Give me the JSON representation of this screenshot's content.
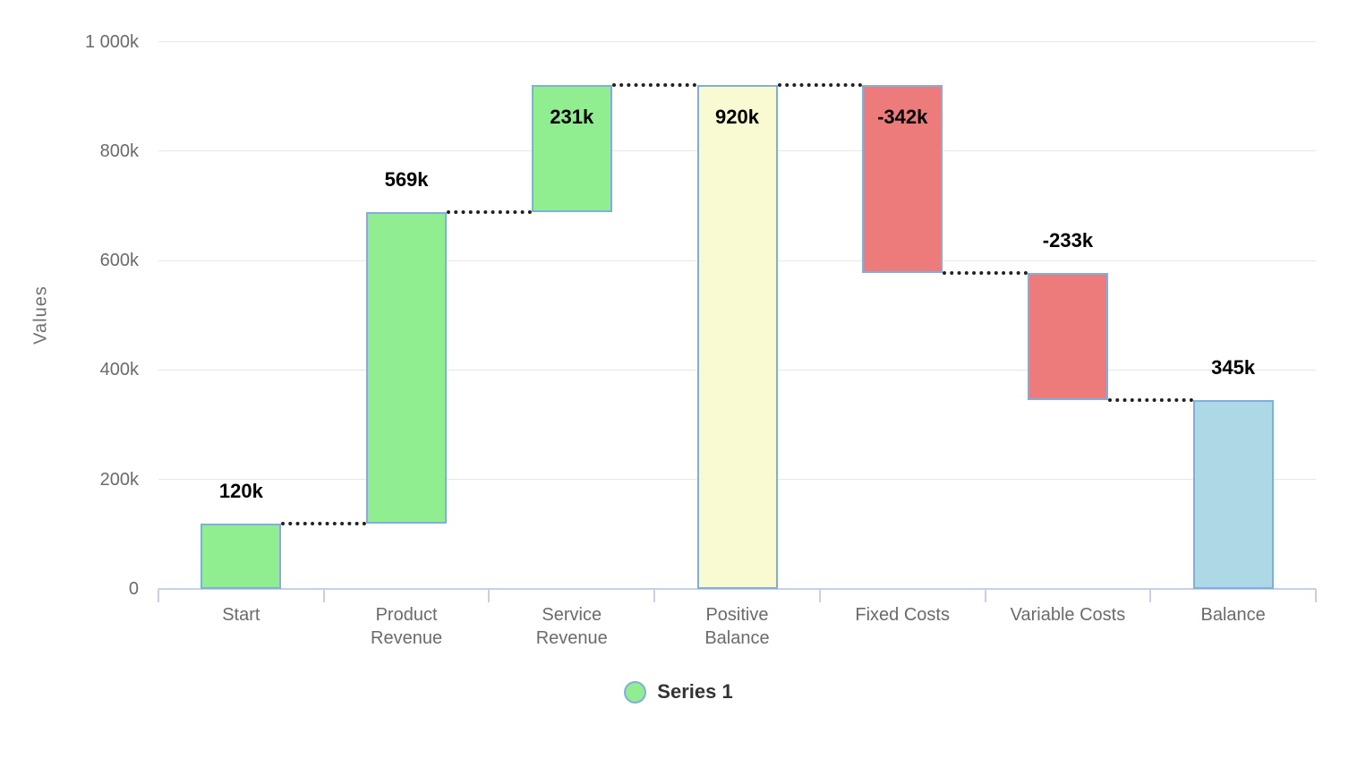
{
  "chart_data": {
    "type": "bar",
    "subtype": "waterfall",
    "title": "",
    "xlabel": "",
    "ylabel": "Values",
    "ylim": [
      0,
      1000
    ],
    "unit": "k",
    "grid": "horizontal",
    "yticks": [
      {
        "value": 0,
        "label": "0"
      },
      {
        "value": 200,
        "label": "200k"
      },
      {
        "value": 400,
        "label": "400k"
      },
      {
        "value": 600,
        "label": "600k"
      },
      {
        "value": 800,
        "label": "800k"
      },
      {
        "value": 1000,
        "label": "1 000k"
      }
    ],
    "categories": [
      "Start",
      "Product Revenue",
      "Service Revenue",
      "Positive Balance",
      "Fixed Costs",
      "Variable Costs",
      "Balance"
    ],
    "bars": [
      {
        "category": "Start",
        "category_lines": [
          "Start"
        ],
        "from": 0,
        "to": 120,
        "value": 120,
        "value_label": "120k",
        "role": "increase",
        "color": "#90ee90",
        "label_placement": "above"
      },
      {
        "category": "Product Revenue",
        "category_lines": [
          "Product",
          "Revenue"
        ],
        "from": 120,
        "to": 689,
        "value": 569,
        "value_label": "569k",
        "role": "increase",
        "color": "#90ee90",
        "label_placement": "above"
      },
      {
        "category": "Service Revenue",
        "category_lines": [
          "Service",
          "Revenue"
        ],
        "from": 689,
        "to": 920,
        "value": 231,
        "value_label": "231k",
        "role": "increase",
        "color": "#90ee90",
        "label_placement": "inside"
      },
      {
        "category": "Positive Balance",
        "category_lines": [
          "Positive",
          "Balance"
        ],
        "from": 0,
        "to": 920,
        "value": 920,
        "value_label": "920k",
        "role": "subtotal",
        "color": "#fafad2",
        "label_placement": "inside"
      },
      {
        "category": "Fixed Costs",
        "category_lines": [
          "Fixed Costs"
        ],
        "from": 920,
        "to": 578,
        "value": -342,
        "value_label": "-342k",
        "role": "decrease",
        "color": "#ed7b7b",
        "label_placement": "inside"
      },
      {
        "category": "Variable Costs",
        "category_lines": [
          "Variable Costs"
        ],
        "from": 578,
        "to": 345,
        "value": -233,
        "value_label": "-233k",
        "role": "decrease",
        "color": "#ed7b7b",
        "label_placement": "above"
      },
      {
        "category": "Balance",
        "category_lines": [
          "Balance"
        ],
        "from": 0,
        "to": 345,
        "value": 345,
        "value_label": "345k",
        "role": "total",
        "color": "#add8e6",
        "label_placement": "above"
      }
    ],
    "connectors": {
      "style": "dotted",
      "color": "#222222"
    },
    "legend": {
      "position": "bottom",
      "items": [
        {
          "label": "Series 1",
          "marker_color": "#90ee90",
          "marker_stroke": "#82aedd"
        }
      ]
    },
    "colors": {
      "increase": "#90ee90",
      "decrease": "#ed7b7b",
      "subtotal": "#fafad2",
      "total": "#add8e6",
      "bar_stroke": "#82aedd",
      "gridline": "#e7e7e7",
      "axis_line": "#c5d1e4",
      "tick_label": "#6b6b6b",
      "value_label": "#000000",
      "axis_title": "#6e6e6e",
      "legend_text": "#333333",
      "background": "#ffffff"
    }
  }
}
